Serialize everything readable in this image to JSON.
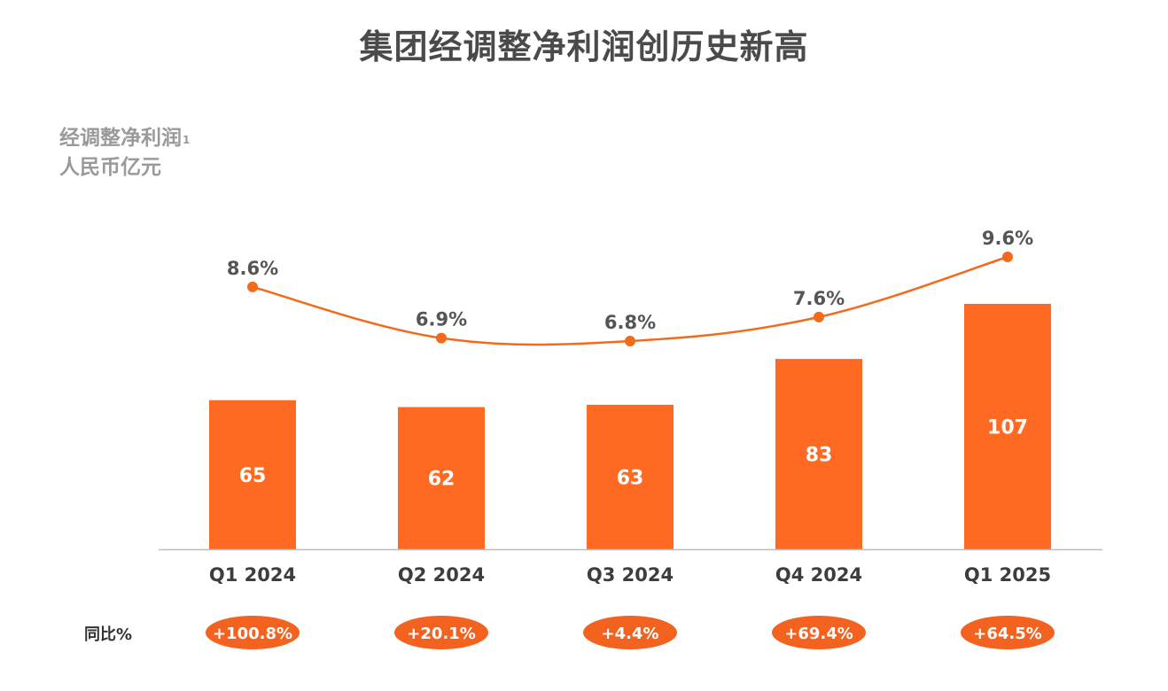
{
  "title": "集团经调整净利润创历史新高",
  "metric": {
    "name": "经调整净利润",
    "footnote": "1",
    "unit": "人民币亿元"
  },
  "yoy_label": "同比%",
  "colors": {
    "bar": "#ff6a22",
    "line": "#f26b1d",
    "badge": "#f4621f",
    "title": "#4a4a4a",
    "subtitle": "#9a9a9a",
    "axis_text": "#3d3d3d"
  },
  "chart_data": {
    "type": "bar",
    "categories": [
      "Q1 2024",
      "Q2 2024",
      "Q3 2024",
      "Q4 2024",
      "Q1 2025"
    ],
    "values": [
      65,
      62,
      63,
      83,
      107
    ],
    "value_labels": [
      "65",
      "62",
      "63",
      "83",
      "107"
    ],
    "margin_pct": [
      8.6,
      6.9,
      6.8,
      7.6,
      9.6
    ],
    "margin_labels": [
      "8.6%",
      "6.9%",
      "6.8%",
      "7.6%",
      "9.6%"
    ],
    "yoy_labels": [
      "+100.8%",
      "+20.1%",
      "+4.4%",
      "+69.4%",
      "+64.5%"
    ],
    "ylim": [
      0,
      107
    ],
    "grid": false,
    "legend": "none"
  }
}
